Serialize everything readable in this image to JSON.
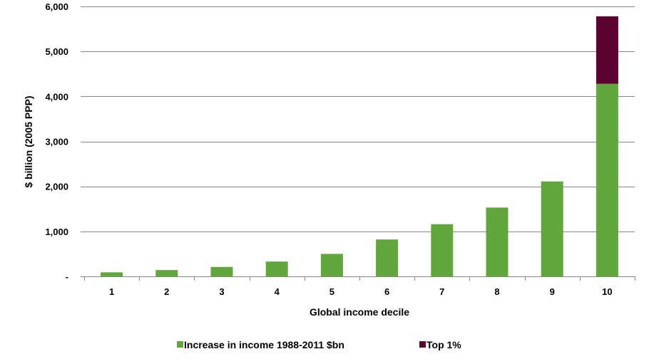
{
  "chart_data": {
    "type": "bar",
    "stacked": true,
    "categories": [
      "1",
      "2",
      "3",
      "4",
      "5",
      "6",
      "7",
      "8",
      "9",
      "10"
    ],
    "series": [
      {
        "name": "Increase in income 1988-2011 $bn",
        "color": "#62a73b",
        "values": [
          90,
          140,
          210,
          330,
          500,
          820,
          1160,
          1530,
          2110,
          4280
        ]
      },
      {
        "name": "Top 1%",
        "color": "#5c0030",
        "values": [
          0,
          0,
          0,
          0,
          0,
          0,
          0,
          0,
          0,
          1500
        ]
      }
    ],
    "xlabel": "Global income decile",
    "ylabel": "$ billion (2005 PPP)",
    "ylim": [
      0,
      6000
    ],
    "yticks": [
      0,
      1000,
      2000,
      3000,
      4000,
      5000,
      6000
    ],
    "ytick_labels": [
      "-",
      "1,000",
      "2,000",
      "3,000",
      "4,000",
      "5,000",
      "6,000"
    ],
    "grid": "horizontal",
    "legend": "bottom",
    "gridline_color": "#888888"
  }
}
